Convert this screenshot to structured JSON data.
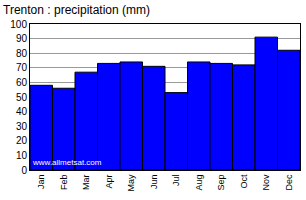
{
  "chart_data": {
    "type": "bar",
    "title": "Trenton : precipitation (mm)",
    "categories": [
      "Jan",
      "Feb",
      "Mar",
      "Apr",
      "May",
      "Jun",
      "Jul",
      "Aug",
      "Sep",
      "Oct",
      "Nov",
      "Dec"
    ],
    "values": [
      58,
      56,
      67,
      73,
      74,
      71,
      53,
      74,
      73,
      72,
      91,
      82
    ],
    "color": "#0000ff",
    "ylim": [
      0,
      100
    ],
    "yticks": [
      0,
      10,
      20,
      30,
      40,
      50,
      60,
      70,
      80,
      90,
      100
    ],
    "grid": true,
    "annotations": [
      "www.allmetsat.com"
    ]
  }
}
